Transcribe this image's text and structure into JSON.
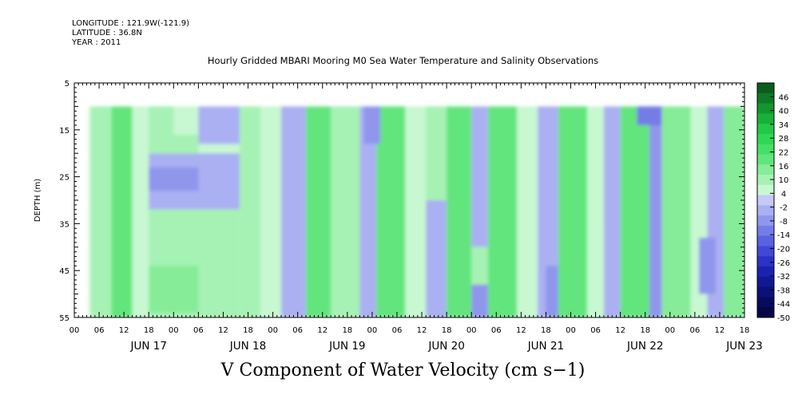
{
  "meta": {
    "longitude": "LONGITUDE : 121.9W(-121.9)",
    "latitude": "LATITUDE : 36.8N",
    "year": "YEAR : 2011"
  },
  "chart_data": {
    "type": "heatmap",
    "title": "Hourly Gridded MBARI Mooring M0 Sea Water Temperature and Salinity Observations",
    "main_title": "V Component of Water Velocity (cm s−1)",
    "ylabel": "DEPTH (m)",
    "xlabel": "",
    "ylim": [
      55,
      5
    ],
    "y_ticks": [
      5,
      15,
      25,
      35,
      45,
      55
    ],
    "x_range_hours": [
      -18,
      144
    ],
    "x_tick_labels": [
      "00",
      "06",
      "12",
      "18",
      "00",
      "06",
      "12",
      "18",
      "00",
      "06",
      "12",
      "18",
      "00",
      "06",
      "12",
      "18",
      "00",
      "06",
      "12",
      "18",
      "00",
      "06",
      "12",
      "18",
      "00",
      "06",
      "12",
      "18"
    ],
    "day_labels": [
      "JUN 17",
      "JUN 18",
      "JUN 19",
      "JUN 20",
      "JUN 21",
      "JUN 22",
      "JUN 23"
    ],
    "colorbar": {
      "labels": [
        "46",
        "40",
        "34",
        "28",
        "22",
        "16",
        "10",
        "4",
        "-2",
        "-8",
        "-14",
        "-20",
        "-26",
        "-32",
        "-38",
        "-44",
        "-50"
      ],
      "range": [
        -50,
        52
      ],
      "colors_high_to_low": [
        "#0b5d1e",
        "#0e7a28",
        "#13962f",
        "#19b03a",
        "#22c846",
        "#2fd756",
        "#45df68",
        "#62e57d",
        "#86ec98",
        "#a6f2b4",
        "#c8f8d1",
        "#c5c9f6",
        "#aab0f2",
        "#8f96ec",
        "#747ce6",
        "#5a62df",
        "#4048d6",
        "#2a32c8",
        "#1a22b0",
        "#121894",
        "#0c1078",
        "#080a5e",
        "#050746"
      ]
    },
    "data_extent": {
      "x_hours": [
        -14.5,
        144
      ],
      "depth_m": [
        10,
        55
      ]
    },
    "field_description_note": "",
    "patches": [
      {
        "x0": -14,
        "x1": -9,
        "d0": 10,
        "d1": 55,
        "v": 10
      },
      {
        "x0": -9,
        "x1": -4,
        "d0": 10,
        "d1": 55,
        "v": 20
      },
      {
        "x0": -4,
        "x1": 0,
        "d0": 10,
        "d1": 55,
        "v": 6
      },
      {
        "x0": 0,
        "x1": 12,
        "d0": 10,
        "d1": 20,
        "v": 8
      },
      {
        "x0": 6,
        "x1": 12,
        "d0": 10,
        "d1": 16,
        "v": 4
      },
      {
        "x0": 12,
        "x1": 22,
        "d0": 10,
        "d1": 18,
        "v": -3
      },
      {
        "x0": 0,
        "x1": 22,
        "d0": 20,
        "d1": 32,
        "v": -4
      },
      {
        "x0": 0,
        "x1": 12,
        "d0": 23,
        "d1": 28,
        "v": -9
      },
      {
        "x0": 0,
        "x1": 22,
        "d0": 32,
        "d1": 55,
        "v": 8
      },
      {
        "x0": 0,
        "x1": 12,
        "d0": 44,
        "d1": 54,
        "v": 16
      },
      {
        "x0": 22,
        "x1": 27,
        "d0": 10,
        "d1": 55,
        "v": 12
      },
      {
        "x0": 27,
        "x1": 32,
        "d0": 10,
        "d1": 55,
        "v": 6
      },
      {
        "x0": 32,
        "x1": 38,
        "d0": 10,
        "d1": 55,
        "v": -3
      },
      {
        "x0": 38,
        "x1": 44,
        "d0": 10,
        "d1": 55,
        "v": 20
      },
      {
        "x0": 44,
        "x1": 51,
        "d0": 10,
        "d1": 55,
        "v": 8
      },
      {
        "x0": 51,
        "x1": 55,
        "d0": 10,
        "d1": 55,
        "v": -4
      },
      {
        "x0": 55,
        "x1": 62,
        "d0": 10,
        "d1": 55,
        "v": 18
      },
      {
        "x0": 62,
        "x1": 67,
        "d0": 10,
        "d1": 55,
        "v": 5
      },
      {
        "x0": 67,
        "x1": 72,
        "d0": 30,
        "d1": 55,
        "v": -4
      },
      {
        "x0": 67,
        "x1": 72,
        "d0": 10,
        "d1": 30,
        "v": 10
      },
      {
        "x0": 72,
        "x1": 78,
        "d0": 10,
        "d1": 55,
        "v": 20
      },
      {
        "x0": 78,
        "x1": 82,
        "d0": 10,
        "d1": 40,
        "v": -3
      },
      {
        "x0": 78,
        "x1": 82,
        "d0": 40,
        "d1": 55,
        "v": 8
      },
      {
        "x0": 82,
        "x1": 89,
        "d0": 10,
        "d1": 55,
        "v": 18
      },
      {
        "x0": 89,
        "x1": 94,
        "d0": 10,
        "d1": 55,
        "v": 6
      },
      {
        "x0": 94,
        "x1": 99,
        "d0": 10,
        "d1": 55,
        "v": -4
      },
      {
        "x0": 99,
        "x1": 106,
        "d0": 10,
        "d1": 55,
        "v": 20
      },
      {
        "x0": 106,
        "x1": 110,
        "d0": 10,
        "d1": 55,
        "v": 6
      },
      {
        "x0": 110,
        "x1": 114,
        "d0": 10,
        "d1": 55,
        "v": -3
      },
      {
        "x0": 114,
        "x1": 121,
        "d0": 10,
        "d1": 55,
        "v": 18
      },
      {
        "x0": 121,
        "x1": 124,
        "d0": 10,
        "d1": 55,
        "v": -6
      },
      {
        "x0": 124,
        "x1": 131,
        "d0": 10,
        "d1": 55,
        "v": 16
      },
      {
        "x0": 131,
        "x1": 135,
        "d0": 10,
        "d1": 55,
        "v": 4
      },
      {
        "x0": 135,
        "x1": 139,
        "d0": 10,
        "d1": 55,
        "v": -4
      },
      {
        "x0": 139,
        "x1": 144,
        "d0": 10,
        "d1": 55,
        "v": 14
      },
      {
        "x0": 118,
        "x1": 124,
        "d0": 10,
        "d1": 14,
        "v": -12
      },
      {
        "x0": 52,
        "x1": 56,
        "d0": 10,
        "d1": 18,
        "v": -8
      },
      {
        "x0": 78,
        "x1": 82,
        "d0": 48,
        "d1": 55,
        "v": -6
      },
      {
        "x0": 96,
        "x1": 99,
        "d0": 44,
        "d1": 55,
        "v": -8
      },
      {
        "x0": 133,
        "x1": 137,
        "d0": 38,
        "d1": 50,
        "v": -6
      },
      {
        "x0": 108,
        "x1": 110,
        "d0": 35,
        "d1": 55,
        "v": 4
      }
    ]
  }
}
